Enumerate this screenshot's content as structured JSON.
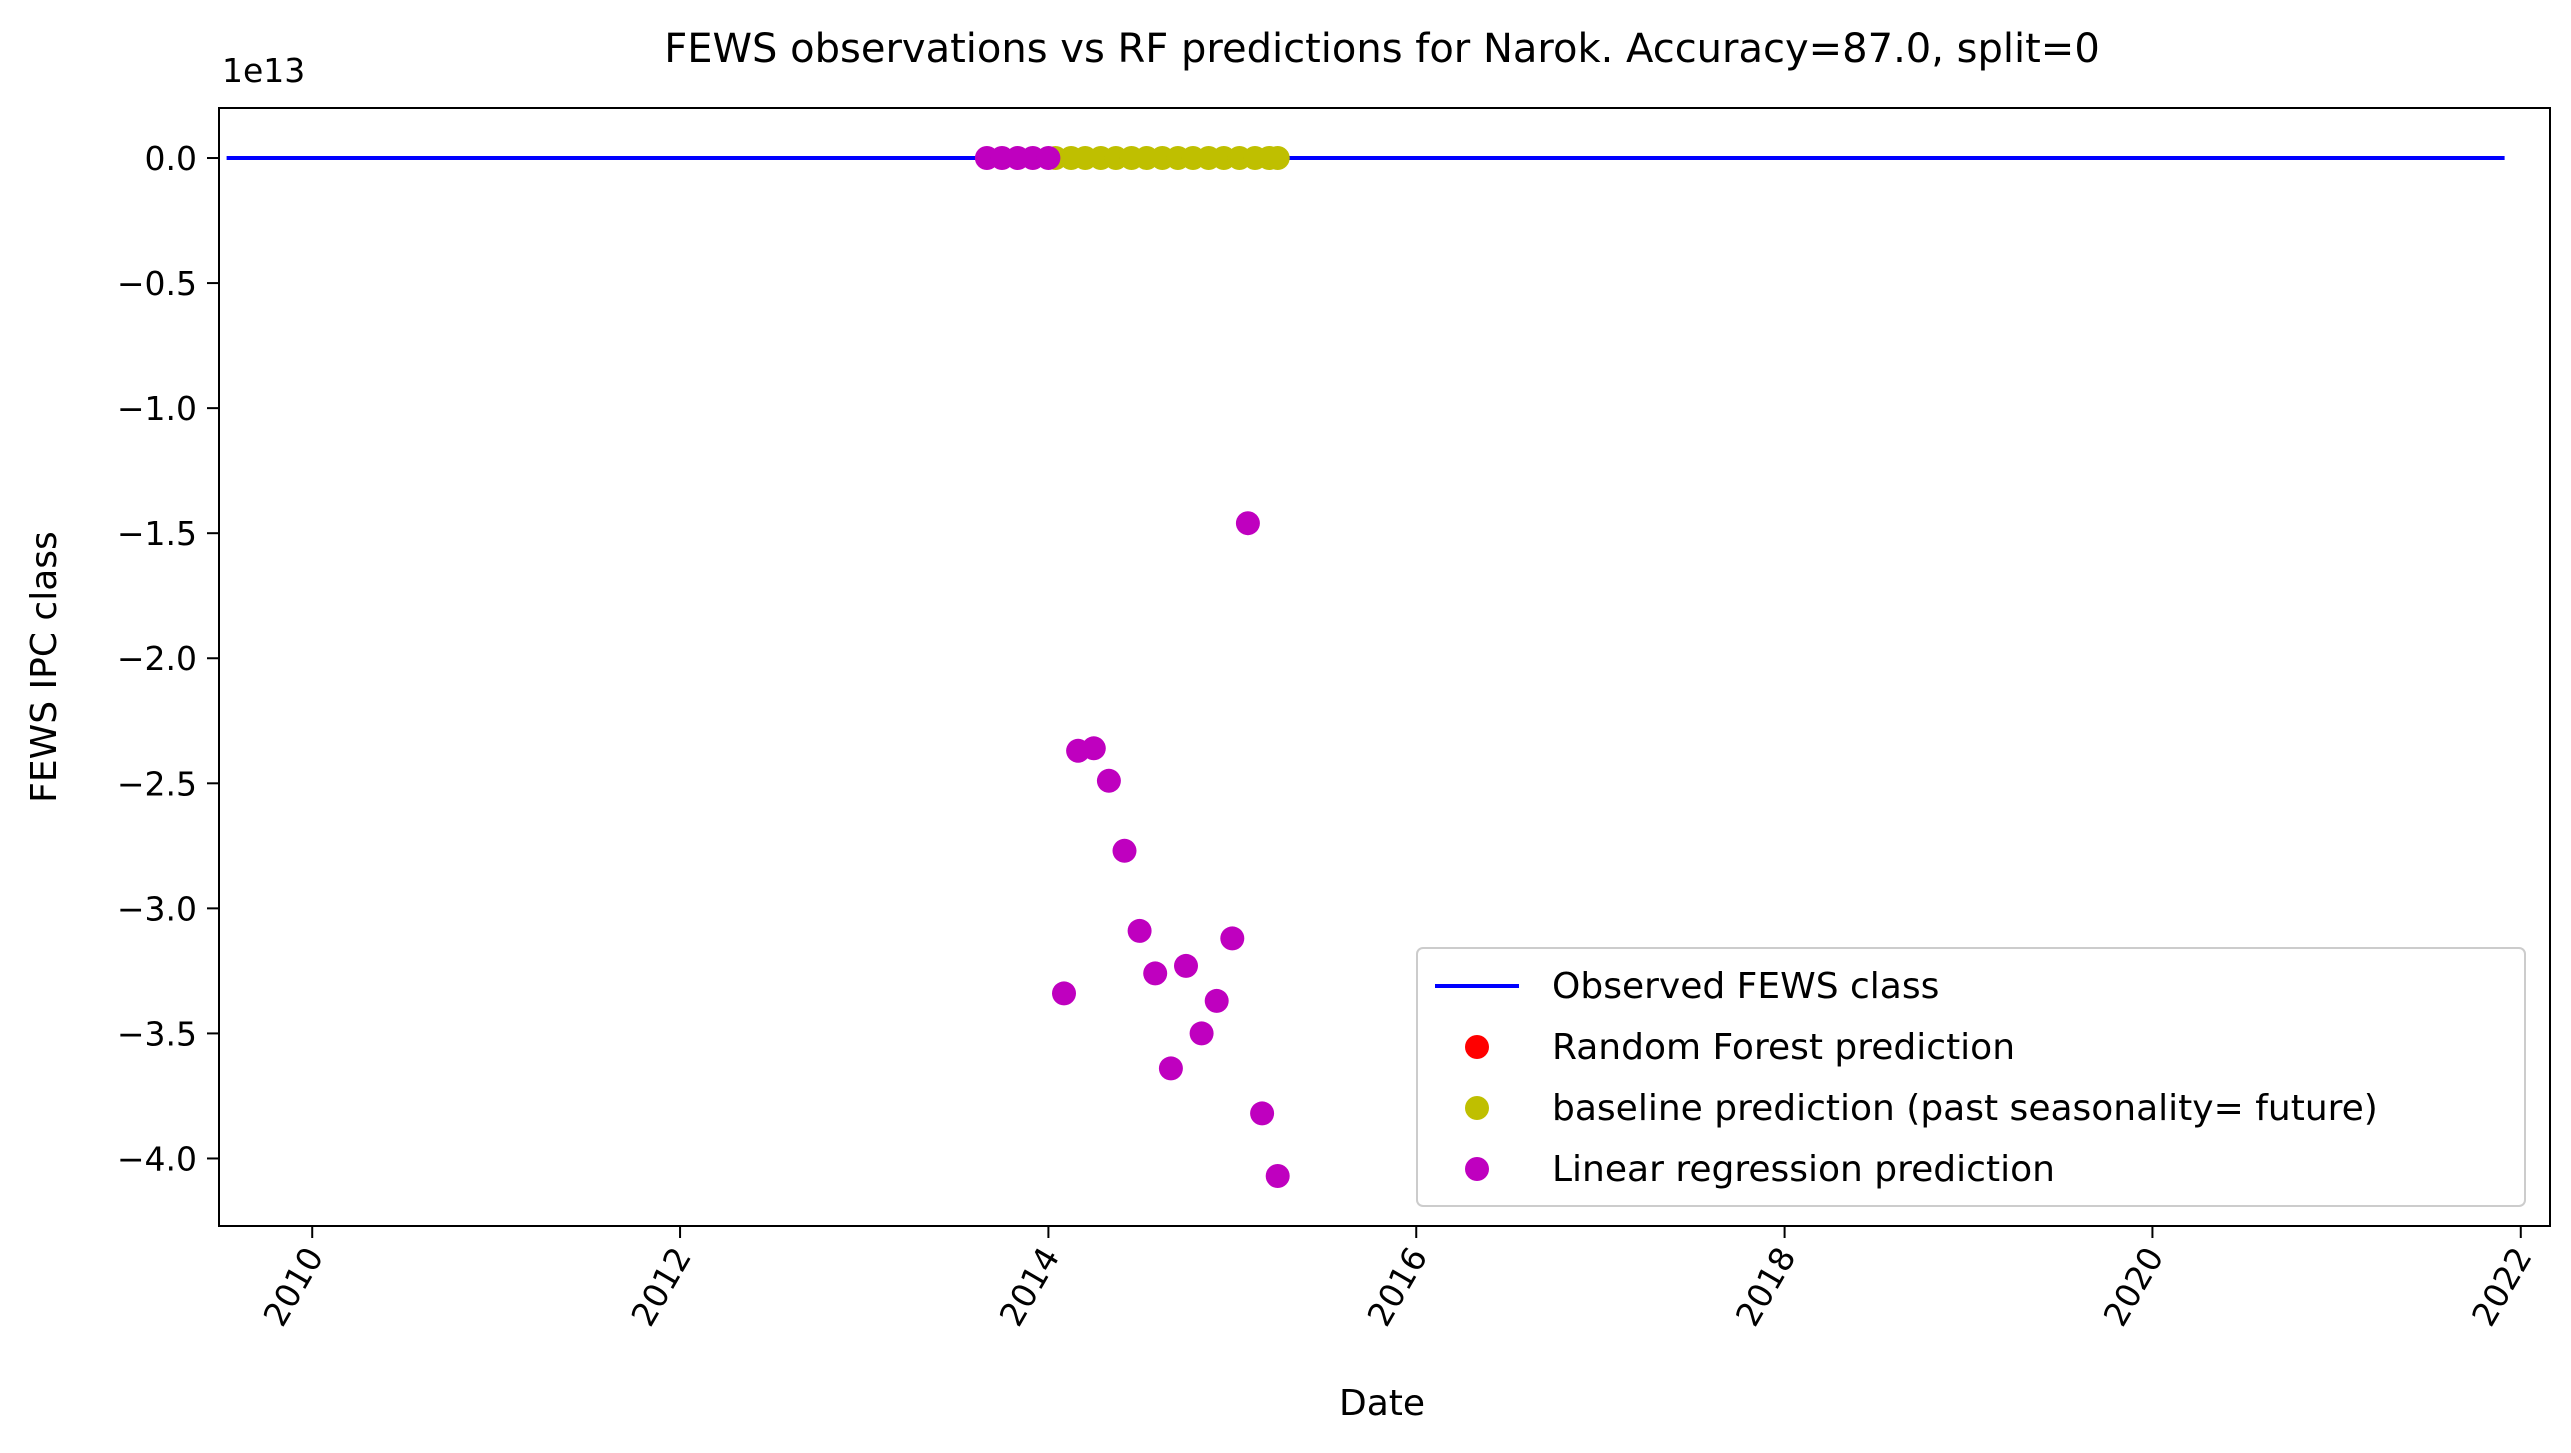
{
  "chart_data": {
    "type": "line",
    "title": "FEWS observations vs RF predictions for Narok. Accuracy=87.0, split=0",
    "xlabel": "Date",
    "ylabel": "FEWS IPC class",
    "y_offset_label": "1e13",
    "y_scale_factor": 10000000000000.0,
    "xlim": [
      "2009-06-30",
      "2022-02-28"
    ],
    "ylim": [
      -42700000000000.0,
      2000000000000.0
    ],
    "x_ticks": [
      {
        "date": "2010-01-01",
        "label": "2010"
      },
      {
        "date": "2012-01-01",
        "label": "2012"
      },
      {
        "date": "2014-01-01",
        "label": "2014"
      },
      {
        "date": "2016-01-01",
        "label": "2016"
      },
      {
        "date": "2018-01-01",
        "label": "2018"
      },
      {
        "date": "2020-01-01",
        "label": "2020"
      },
      {
        "date": "2022-01-01",
        "label": "2022"
      }
    ],
    "x_tick_rotation": 60,
    "y_ticks": [
      {
        "value": 0,
        "label": "0.0"
      },
      {
        "value": -5000000000000.0,
        "label": "−0.5"
      },
      {
        "value": -10000000000000.0,
        "label": "−1.0"
      },
      {
        "value": -15000000000000.0,
        "label": "−1.5"
      },
      {
        "value": -20000000000000.0,
        "label": "−2.0"
      },
      {
        "value": -25000000000000.0,
        "label": "−2.5"
      },
      {
        "value": -30000000000000.0,
        "label": "−3.0"
      },
      {
        "value": -35000000000000.0,
        "label": "−3.5"
      },
      {
        "value": -40000000000000.0,
        "label": "−4.0"
      }
    ],
    "grid": false,
    "legend_position": "lower-right",
    "series": [
      {
        "name": "Observed FEWS class",
        "style": "line",
        "color": "#0000ff",
        "points": [
          {
            "x": "2009-07-15",
            "y": 0
          },
          {
            "x": "2021-11-30",
            "y": 0
          }
        ]
      },
      {
        "name": "Random Forest prediction",
        "style": "marker",
        "color": "#ff0000",
        "points": []
      },
      {
        "name": "baseline prediction (past seasonality= future)",
        "style": "marker",
        "color": "#bfbf00",
        "points": [
          {
            "x": "2014-01-15",
            "y": 0
          },
          {
            "x": "2014-02-15",
            "y": 0
          },
          {
            "x": "2014-03-15",
            "y": 0
          },
          {
            "x": "2014-04-15",
            "y": 0
          },
          {
            "x": "2014-05-15",
            "y": 0
          },
          {
            "x": "2014-06-15",
            "y": 0
          },
          {
            "x": "2014-07-15",
            "y": 0
          },
          {
            "x": "2014-08-15",
            "y": 0
          },
          {
            "x": "2014-09-15",
            "y": 0
          },
          {
            "x": "2014-10-15",
            "y": 0
          },
          {
            "x": "2014-11-15",
            "y": 0
          },
          {
            "x": "2014-12-15",
            "y": 0
          },
          {
            "x": "2015-01-15",
            "y": 0
          },
          {
            "x": "2015-02-15",
            "y": 0
          },
          {
            "x": "2015-03-15",
            "y": 0
          },
          {
            "x": "2015-04-01",
            "y": 0
          }
        ]
      },
      {
        "name": "Linear regression prediction",
        "style": "marker",
        "color": "#bf00bf",
        "points": [
          {
            "x": "2013-09-01",
            "y": 0
          },
          {
            "x": "2013-10-01",
            "y": 0
          },
          {
            "x": "2013-11-01",
            "y": 0
          },
          {
            "x": "2013-12-01",
            "y": 0
          },
          {
            "x": "2014-01-01",
            "y": 0
          },
          {
            "x": "2014-02-01",
            "y": -33400000000000.0
          },
          {
            "x": "2014-03-01",
            "y": -23700000000000.0
          },
          {
            "x": "2014-04-01",
            "y": -23600000000000.0
          },
          {
            "x": "2014-05-01",
            "y": -24900000000000.0
          },
          {
            "x": "2014-06-01",
            "y": -27700000000000.0
          },
          {
            "x": "2014-07-01",
            "y": -30900000000000.0
          },
          {
            "x": "2014-08-01",
            "y": -32600000000000.0
          },
          {
            "x": "2014-09-01",
            "y": -36400000000000.0
          },
          {
            "x": "2014-10-01",
            "y": -32300000000000.0
          },
          {
            "x": "2014-11-01",
            "y": -35000000000000.0
          },
          {
            "x": "2014-12-01",
            "y": -33700000000000.0
          },
          {
            "x": "2015-01-01",
            "y": -31200000000000.0
          },
          {
            "x": "2015-02-01",
            "y": -14600000000000.0
          },
          {
            "x": "2015-03-01",
            "y": -38200000000000.0
          },
          {
            "x": "2015-04-01",
            "y": -40700000000000.0
          }
        ]
      }
    ]
  }
}
